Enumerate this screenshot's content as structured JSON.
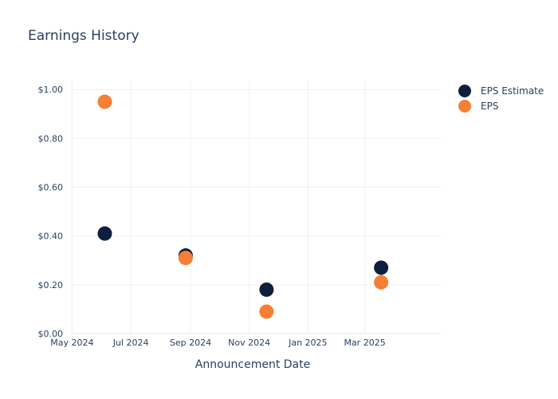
{
  "chart_data": {
    "type": "scatter",
    "title": "Earnings History",
    "xlabel": "Announcement Date",
    "ylabel": "",
    "x_ticks": [
      "May 2024",
      "Jul 2024",
      "Sep 2024",
      "Nov 2024",
      "Jan 2025",
      "Mar 2025"
    ],
    "y_ticks": [
      "$0.00",
      "$0.20",
      "$0.40",
      "$0.60",
      "$0.80",
      "$1.00"
    ],
    "ylim": [
      0,
      1.04
    ],
    "xlim": [
      "2024-04-29",
      "2025-05-19"
    ],
    "grid": true,
    "legend_position": "top-right",
    "series": [
      {
        "name": "EPS Estimate",
        "color": "#0d1f3c",
        "points": [
          {
            "x": "2024-06-04",
            "y": 0.41
          },
          {
            "x": "2024-08-27",
            "y": 0.32
          },
          {
            "x": "2024-11-19",
            "y": 0.18
          },
          {
            "x": "2025-03-18",
            "y": 0.27
          }
        ]
      },
      {
        "name": "EPS",
        "color": "#f57f35",
        "points": [
          {
            "x": "2024-06-04",
            "y": 0.95
          },
          {
            "x": "2024-08-27",
            "y": 0.31
          },
          {
            "x": "2024-11-19",
            "y": 0.09
          },
          {
            "x": "2025-03-18",
            "y": 0.21
          }
        ]
      }
    ]
  }
}
